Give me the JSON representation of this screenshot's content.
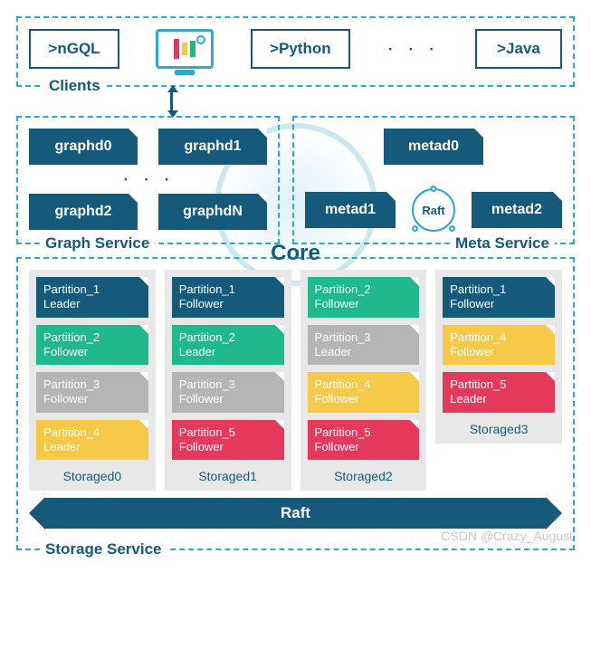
{
  "colors": {
    "teal_primary": "#155a7a",
    "teal_border": "#2aa9d2",
    "green": "#1fb98b",
    "gray": "#b5b5b5",
    "yellow": "#f7c948",
    "red": "#e4395a",
    "storage_bg": "#e8e8e8",
    "core_ring": "#cbe8f2"
  },
  "font": {
    "family": "Arial",
    "box_label_size": 17,
    "btn_size": 17,
    "partition_size": 13
  },
  "clients": {
    "label": "Clients",
    "items": [
      ">nGQL",
      ">Python",
      ">Java"
    ],
    "monitor_bars": [
      "#e4395a",
      "#f7c948",
      "#1fb98b"
    ],
    "ellipsis": "· · ·"
  },
  "graph_service": {
    "label": "Graph Service",
    "nodes": [
      "graphd0",
      "graphd1",
      "graphd2",
      "graphdN"
    ],
    "ellipsis": "· · ·"
  },
  "meta_service": {
    "label": "Meta Service",
    "nodes": [
      "metad0",
      "metad1",
      "metad2"
    ],
    "raft_label": "Raft"
  },
  "core_label": "Core",
  "storage_service": {
    "label": "Storage Service",
    "raft_label": "Raft",
    "columns": [
      {
        "name": "Storaged0",
        "partitions": [
          {
            "name": "Partition_1",
            "role": "Leader",
            "color": "#155a7a"
          },
          {
            "name": "Partition_2",
            "role": "Follower",
            "color": "#1fb98b"
          },
          {
            "name": "Partition_3",
            "role": "Follower",
            "color": "#b5b5b5"
          },
          {
            "name": "Partition_4",
            "role": "Leader",
            "color": "#f7c948"
          }
        ]
      },
      {
        "name": "Storaged1",
        "partitions": [
          {
            "name": "Partition_1",
            "role": "Follower",
            "color": "#155a7a"
          },
          {
            "name": "Partition_2",
            "role": "Leader",
            "color": "#1fb98b"
          },
          {
            "name": "Partition_3",
            "role": "Follower",
            "color": "#b5b5b5"
          },
          {
            "name": "Partition_5",
            "role": "Follower",
            "color": "#e4395a"
          }
        ]
      },
      {
        "name": "Storaged2",
        "partitions": [
          {
            "name": "Partition_2",
            "role": "Follower",
            "color": "#1fb98b"
          },
          {
            "name": "Partition_3",
            "role": "Leader",
            "color": "#b5b5b5"
          },
          {
            "name": "Partition_4",
            "role": "Follower",
            "color": "#f7c948"
          },
          {
            "name": "Partition_5",
            "role": "Follower",
            "color": "#e4395a"
          }
        ]
      },
      {
        "name": "Storaged3",
        "partitions": [
          {
            "name": "Partition_1",
            "role": "Follower",
            "color": "#155a7a"
          },
          {
            "name": "Partition_4",
            "role": "Follower",
            "color": "#f7c948"
          },
          {
            "name": "Partition_5",
            "role": "Leader",
            "color": "#e4395a"
          }
        ]
      }
    ]
  },
  "watermark": "CSDN @Crazy_August"
}
